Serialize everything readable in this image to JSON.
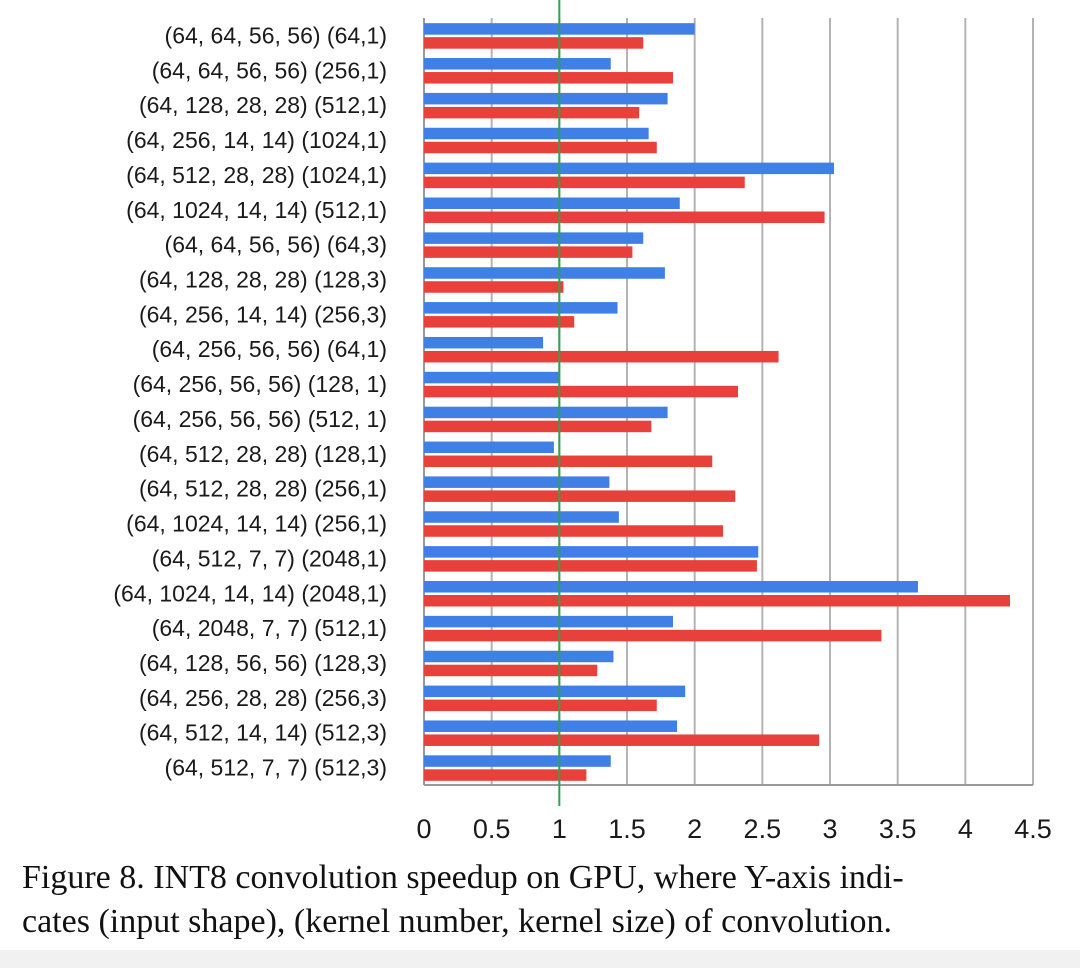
{
  "caption": {
    "line1": "Figure 8. INT8 convolution speedup on GPU, where Y-axis indi-",
    "line2": "cates (input shape), (kernel number, kernel size) of convolution."
  },
  "chart_data": {
    "type": "bar",
    "orientation": "horizontal",
    "title": "",
    "xlabel": "",
    "ylabel": "",
    "xlim": [
      0,
      4.5
    ],
    "x_ticks": [
      "0",
      "0.5",
      "1",
      "1.5",
      "2",
      "2.5",
      "3",
      "3.5",
      "4",
      "4.5"
    ],
    "grid": true,
    "reference_line": 1,
    "categories": [
      "(64, 64, 56, 56) (64,1)",
      "(64, 64, 56, 56) (256,1)",
      "(64, 128, 28, 28) (512,1)",
      "(64, 256, 14, 14) (1024,1)",
      "(64, 512, 28, 28) (1024,1)",
      "(64, 1024, 14, 14) (512,1)",
      "(64, 64, 56, 56) (64,3)",
      "(64, 128, 28, 28) (128,3)",
      "(64, 256, 14, 14) (256,3)",
      "(64, 256, 56, 56) (64,1)",
      "(64, 256, 56, 56) (128, 1)",
      "(64, 256, 56, 56) (512, 1)",
      "(64, 512, 28, 28) (128,1)",
      "(64, 512, 28, 28) (256,1)",
      "(64, 1024, 14, 14) (256,1)",
      "(64, 512, 7, 7) (2048,1)",
      "(64, 1024, 14, 14) (2048,1)",
      "(64, 2048, 7, 7) (512,1)",
      "(64, 128, 56, 56) (128,3)",
      "(64, 256, 28, 28) (256,3)",
      "(64, 512, 14, 14) (512,3)",
      "(64, 512, 7, 7) (512,3)"
    ],
    "series": [
      {
        "color": "#3f7fe6",
        "values": [
          2.0,
          1.38,
          1.8,
          1.66,
          3.03,
          1.89,
          1.62,
          1.78,
          1.43,
          0.88,
          1.0,
          1.8,
          0.96,
          1.37,
          1.44,
          2.47,
          3.65,
          1.84,
          1.4,
          1.93,
          1.87,
          1.38
        ]
      },
      {
        "color": "#e8403a",
        "values": [
          1.62,
          1.84,
          1.59,
          1.72,
          2.37,
          2.96,
          1.54,
          1.03,
          1.11,
          2.62,
          2.32,
          1.68,
          2.13,
          2.3,
          2.21,
          2.46,
          4.33,
          3.38,
          1.28,
          1.72,
          2.92,
          1.2
        ]
      }
    ]
  }
}
